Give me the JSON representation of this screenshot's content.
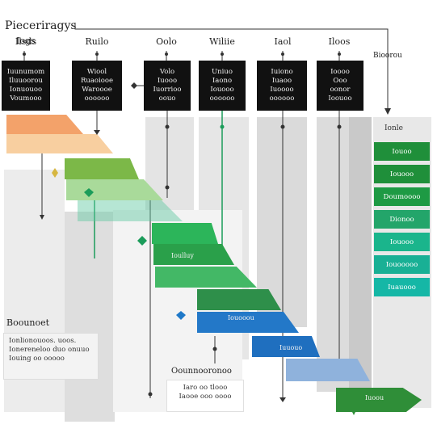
{
  "title": "Pieceriragys",
  "subtitle": "Iogs",
  "right_header": "Bioorou",
  "stages": [
    {
      "label": "Ilsds",
      "lines": [
        "Iuunumom",
        "Iluuoorou",
        "Ionuouoo",
        "Voumooo"
      ]
    },
    {
      "label": "Ruilo",
      "lines": [
        "Wiool",
        "Ruaoiooe",
        "Waroooe",
        "oooooo"
      ]
    },
    {
      "label": "Oolo",
      "lines": [
        "Volo",
        "Iuooo",
        "Iuorrioo",
        "oouo"
      ]
    },
    {
      "label": "Wiliie",
      "lines": [
        "Uniuo",
        "Iaono",
        "Iouooo",
        "oooooo"
      ]
    },
    {
      "label": "Iaol",
      "lines": [
        "Iuiono",
        "Iuaoo",
        "Iuoooo",
        "oooooo"
      ]
    },
    {
      "label": "Iloos",
      "lines": [
        "Ioooo",
        "Ooo",
        "oonor",
        "Ioouoo"
      ]
    }
  ],
  "bands": [
    {
      "text": "",
      "color": "#f3a26a"
    },
    {
      "text": "",
      "color": "#f8cfa0"
    },
    {
      "text": "",
      "color": "#7cb848"
    },
    {
      "text": "",
      "color": "#a9da9a"
    },
    {
      "text": "",
      "color": "#5ec7a0"
    },
    {
      "text": "",
      "color": "#2cb55a"
    },
    {
      "text": "Ioulluy",
      "color": "#2aa04a"
    },
    {
      "text": "",
      "color": "#43b866"
    },
    {
      "text": "",
      "color": "#2e8f4a"
    },
    {
      "text": "Iouooou",
      "color": "#2378c8"
    },
    {
      "text": "Iuuouo",
      "color": "#1f6fbf"
    },
    {
      "text": "",
      "color": "#8fb2dc"
    },
    {
      "text": "Iuoou",
      "color": "#2f8e38"
    }
  ],
  "legend": {
    "title": "Ionle",
    "items": [
      {
        "label": "Iouoo",
        "color": "#1f8f3a"
      },
      {
        "label": "Iouooo",
        "color": "#1f8f3a"
      },
      {
        "label": "Doumoooo",
        "color": "#1e9a44"
      },
      {
        "label": "Dionoo",
        "color": "#23a56a"
      },
      {
        "label": "Iouooo",
        "color": "#1ab58c"
      },
      {
        "label": "Iouooooo",
        "color": "#19b095"
      },
      {
        "label": "Iuauooo",
        "color": "#15b7a6"
      }
    ]
  },
  "notes": {
    "left_title": "Boounoet",
    "left_lines": [
      "Ionlionouoos. uoos.",
      "Ionereneloo duo onuuo",
      "Iouing oo ooooo"
    ],
    "center_title": "Oounnooronoo",
    "center_lines": [
      "Iaro oo tlooo",
      "Iaooe ooo oooo"
    ]
  }
}
